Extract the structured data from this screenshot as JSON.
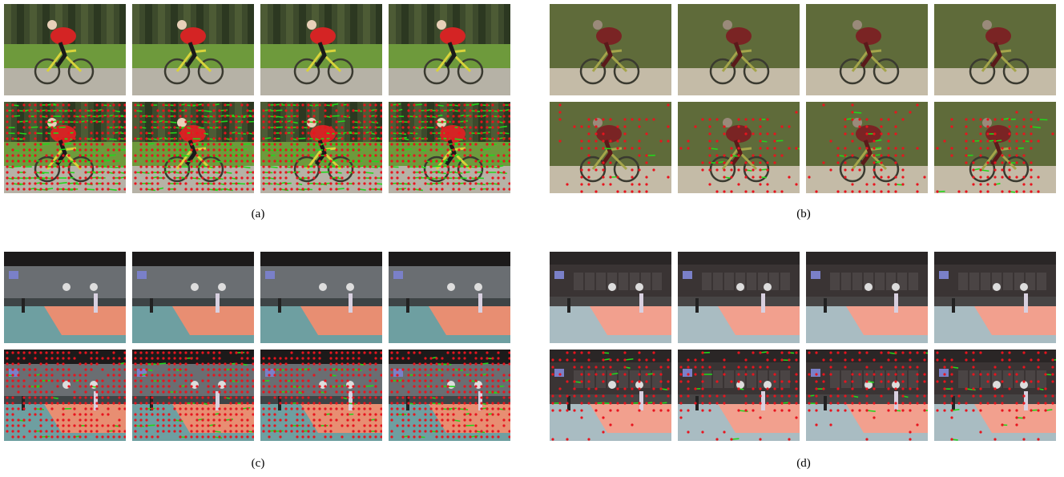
{
  "figure": {
    "panels": [
      {
        "id": "a",
        "caption": "(a)",
        "scene": "cyclist",
        "style": "video",
        "frames": 4
      },
      {
        "id": "b",
        "caption": "(b)",
        "scene": "cyclist",
        "style": "segmented",
        "frames": 4
      },
      {
        "id": "c",
        "caption": "(c)",
        "scene": "basketball",
        "style": "video",
        "frames": 4
      },
      {
        "id": "d",
        "caption": "(d)",
        "scene": "basketball",
        "style": "segmented",
        "frames": 4
      }
    ],
    "rows_per_panel": [
      "video-frame",
      "trajectory-overlay"
    ],
    "colors": {
      "trajectory_point": "#e8141e",
      "trajectory_track": "#23d61b"
    }
  }
}
